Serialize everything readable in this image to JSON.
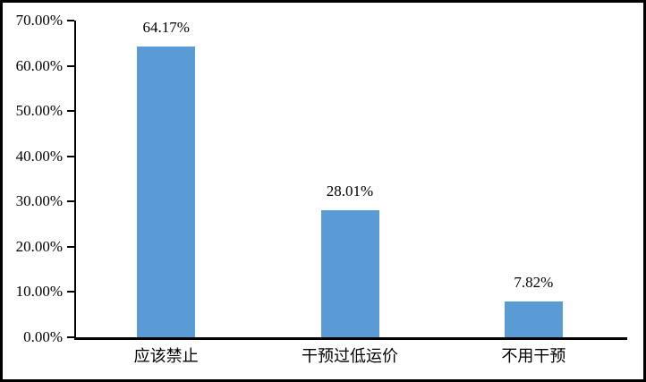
{
  "chart_data": {
    "type": "bar",
    "categories": [
      "应该禁止",
      "干预过低运价",
      "不用干预"
    ],
    "values": [
      64.17,
      28.01,
      7.82
    ],
    "value_labels": [
      "64.17%",
      "28.01%",
      "7.82%"
    ],
    "title": "",
    "xlabel": "",
    "ylabel": "",
    "ylim": [
      0,
      70
    ],
    "ytick_step": 10,
    "ytick_labels": [
      "0.00%",
      "10.00%",
      "20.00%",
      "30.00%",
      "40.00%",
      "50.00%",
      "60.00%",
      "70.00%"
    ],
    "grid": false,
    "legend": false,
    "bar_color": "#5B9BD5",
    "axis_color": "#000000",
    "text_color": "#000000",
    "background_color": "#FFFFFF"
  }
}
